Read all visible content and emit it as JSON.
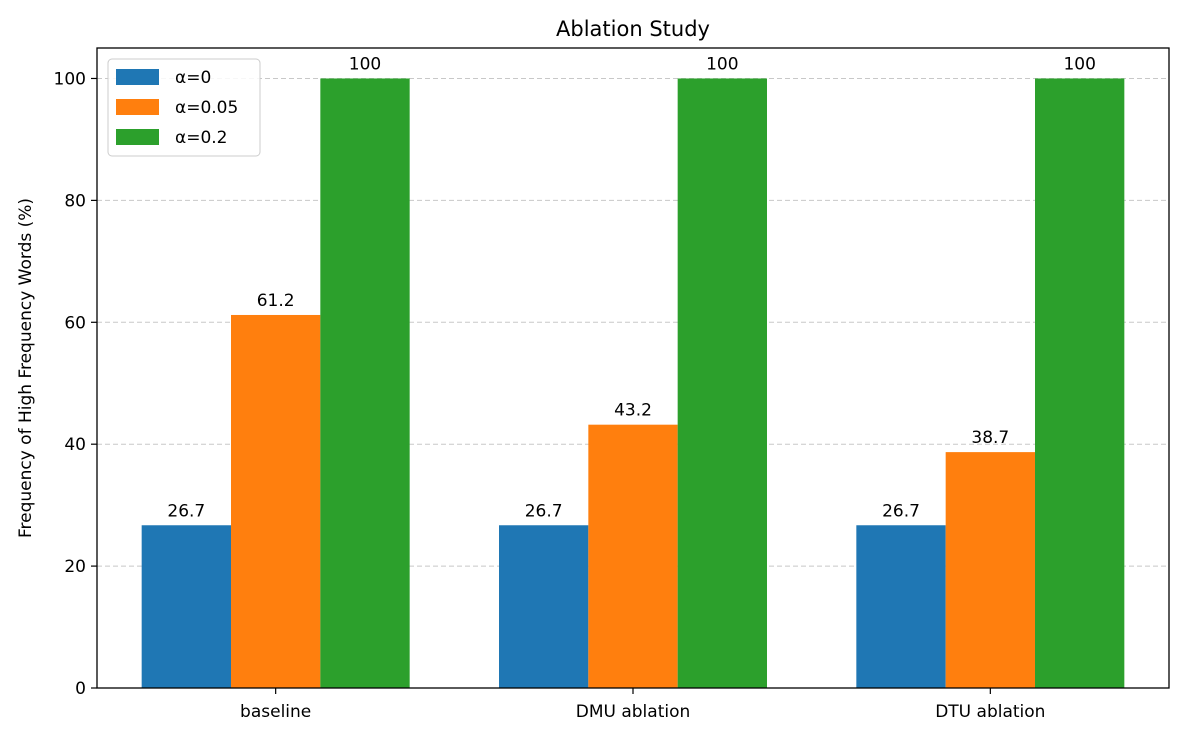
{
  "chart_data": {
    "type": "bar",
    "title": "Ablation Study",
    "xlabel": "",
    "ylabel": "Frequency of High Frequency Words (%)",
    "ylim": [
      0,
      105
    ],
    "yticks": [
      0,
      20,
      40,
      60,
      80,
      100
    ],
    "grid": "y-dashed",
    "legend_position": "top-left",
    "categories": [
      "baseline",
      "DMU ablation",
      "DTU ablation"
    ],
    "series": [
      {
        "name": "α=0",
        "color": "#1f77b4",
        "values": [
          26.7,
          26.7,
          26.7
        ],
        "labels": [
          "26.7",
          "26.7",
          "26.7"
        ]
      },
      {
        "name": "α=0.05",
        "color": "#ff7f0e",
        "values": [
          61.2,
          43.2,
          38.7
        ],
        "labels": [
          "61.2",
          "43.2",
          "38.7"
        ]
      },
      {
        "name": "α=0.2",
        "color": "#2ca02c",
        "values": [
          100,
          100,
          100
        ],
        "labels": [
          "100",
          "100",
          "100"
        ]
      }
    ]
  }
}
